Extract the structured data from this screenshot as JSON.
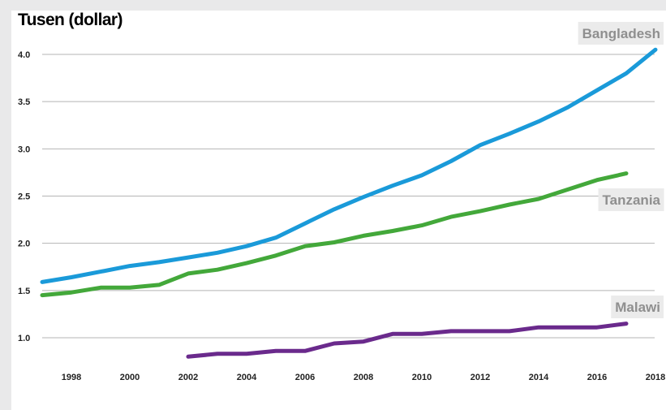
{
  "chart_data": {
    "type": "line",
    "title": "Tusen (dollar)",
    "xlabel": "",
    "ylabel": "",
    "xlim": [
      1996.6,
      2018.3
    ],
    "ylim": [
      0.6,
      4.1
    ],
    "x_ticks": [
      1998,
      2000,
      2002,
      2004,
      2006,
      2008,
      2010,
      2012,
      2014,
      2016,
      2018
    ],
    "x_tick_labels": [
      "1998",
      "2000",
      "2002",
      "2004",
      "2006",
      "2008",
      "2010",
      "2012",
      "2014",
      "2016",
      "2018"
    ],
    "y_ticks": [
      1.0,
      1.5,
      2.0,
      2.5,
      3.0,
      3.5,
      4.0
    ],
    "y_tick_labels": [
      "1.0",
      "1.5",
      "2.0",
      "2.5",
      "3.0",
      "3.5",
      "4.0"
    ],
    "grid": true,
    "legend": "direct labels at line ends",
    "series": [
      {
        "name": "Bangladesh",
        "color": "#1a9ad9",
        "x": [
          1997,
          1998,
          1999,
          2000,
          2001,
          2002,
          2003,
          2004,
          2005,
          2006,
          2007,
          2008,
          2009,
          2010,
          2011,
          2012,
          2013,
          2014,
          2015,
          2016,
          2017,
          2018
        ],
        "y": [
          1.59,
          1.64,
          1.7,
          1.76,
          1.8,
          1.85,
          1.9,
          1.97,
          2.06,
          2.21,
          2.36,
          2.49,
          2.61,
          2.72,
          2.87,
          3.04,
          3.16,
          3.29,
          3.44,
          3.62,
          3.8,
          4.05
        ]
      },
      {
        "name": "Tanzania",
        "color": "#43a83a",
        "x": [
          1997,
          1998,
          1999,
          2000,
          2001,
          2002,
          2003,
          2004,
          2005,
          2006,
          2007,
          2008,
          2009,
          2010,
          2011,
          2012,
          2013,
          2014,
          2015,
          2016,
          2017
        ],
        "y": [
          1.45,
          1.48,
          1.53,
          1.53,
          1.56,
          1.68,
          1.72,
          1.79,
          1.87,
          1.97,
          2.01,
          2.08,
          2.13,
          2.19,
          2.28,
          2.34,
          2.41,
          2.47,
          2.57,
          2.67,
          2.74
        ]
      },
      {
        "name": "Malawi",
        "color": "#6a2a8c",
        "x": [
          2002,
          2003,
          2004,
          2005,
          2006,
          2007,
          2008,
          2009,
          2010,
          2011,
          2012,
          2013,
          2014,
          2015,
          2016,
          2017
        ],
        "y": [
          0.8,
          0.83,
          0.83,
          0.86,
          0.86,
          0.94,
          0.96,
          1.04,
          1.04,
          1.07,
          1.07,
          1.07,
          1.11,
          1.11,
          1.11,
          1.15
        ]
      }
    ]
  }
}
